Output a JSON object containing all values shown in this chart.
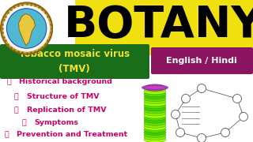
{
  "bg_color": "#ffffff",
  "title_text": "BOTANY",
  "title_color": "#000000",
  "title_bg": "#f0e010",
  "badge1_text": "Tobacco mosaic virus\n(TMV)",
  "badge1_bg": "#1a6e1a",
  "badge1_fg": "#f5e030",
  "badge2_text": "English / Hindi",
  "badge2_bg": "#8b1560",
  "badge2_fg": "#ffffff",
  "bullet_color": "#cc0066",
  "bullets": [
    "Historical background",
    "Structure of TMV",
    "Replication of TMV",
    "Symptoms",
    "Prevention and Treatment"
  ],
  "bullet_indents": [
    0.02,
    0.05,
    0.05,
    0.08,
    0.01
  ],
  "bullet_fontsize": 6.8,
  "virus_colors": [
    "#aaff00",
    "#88ee00",
    "#66dd00",
    "#44cc00",
    "#55dd00"
  ],
  "virus_top_color": "#cc44aa"
}
